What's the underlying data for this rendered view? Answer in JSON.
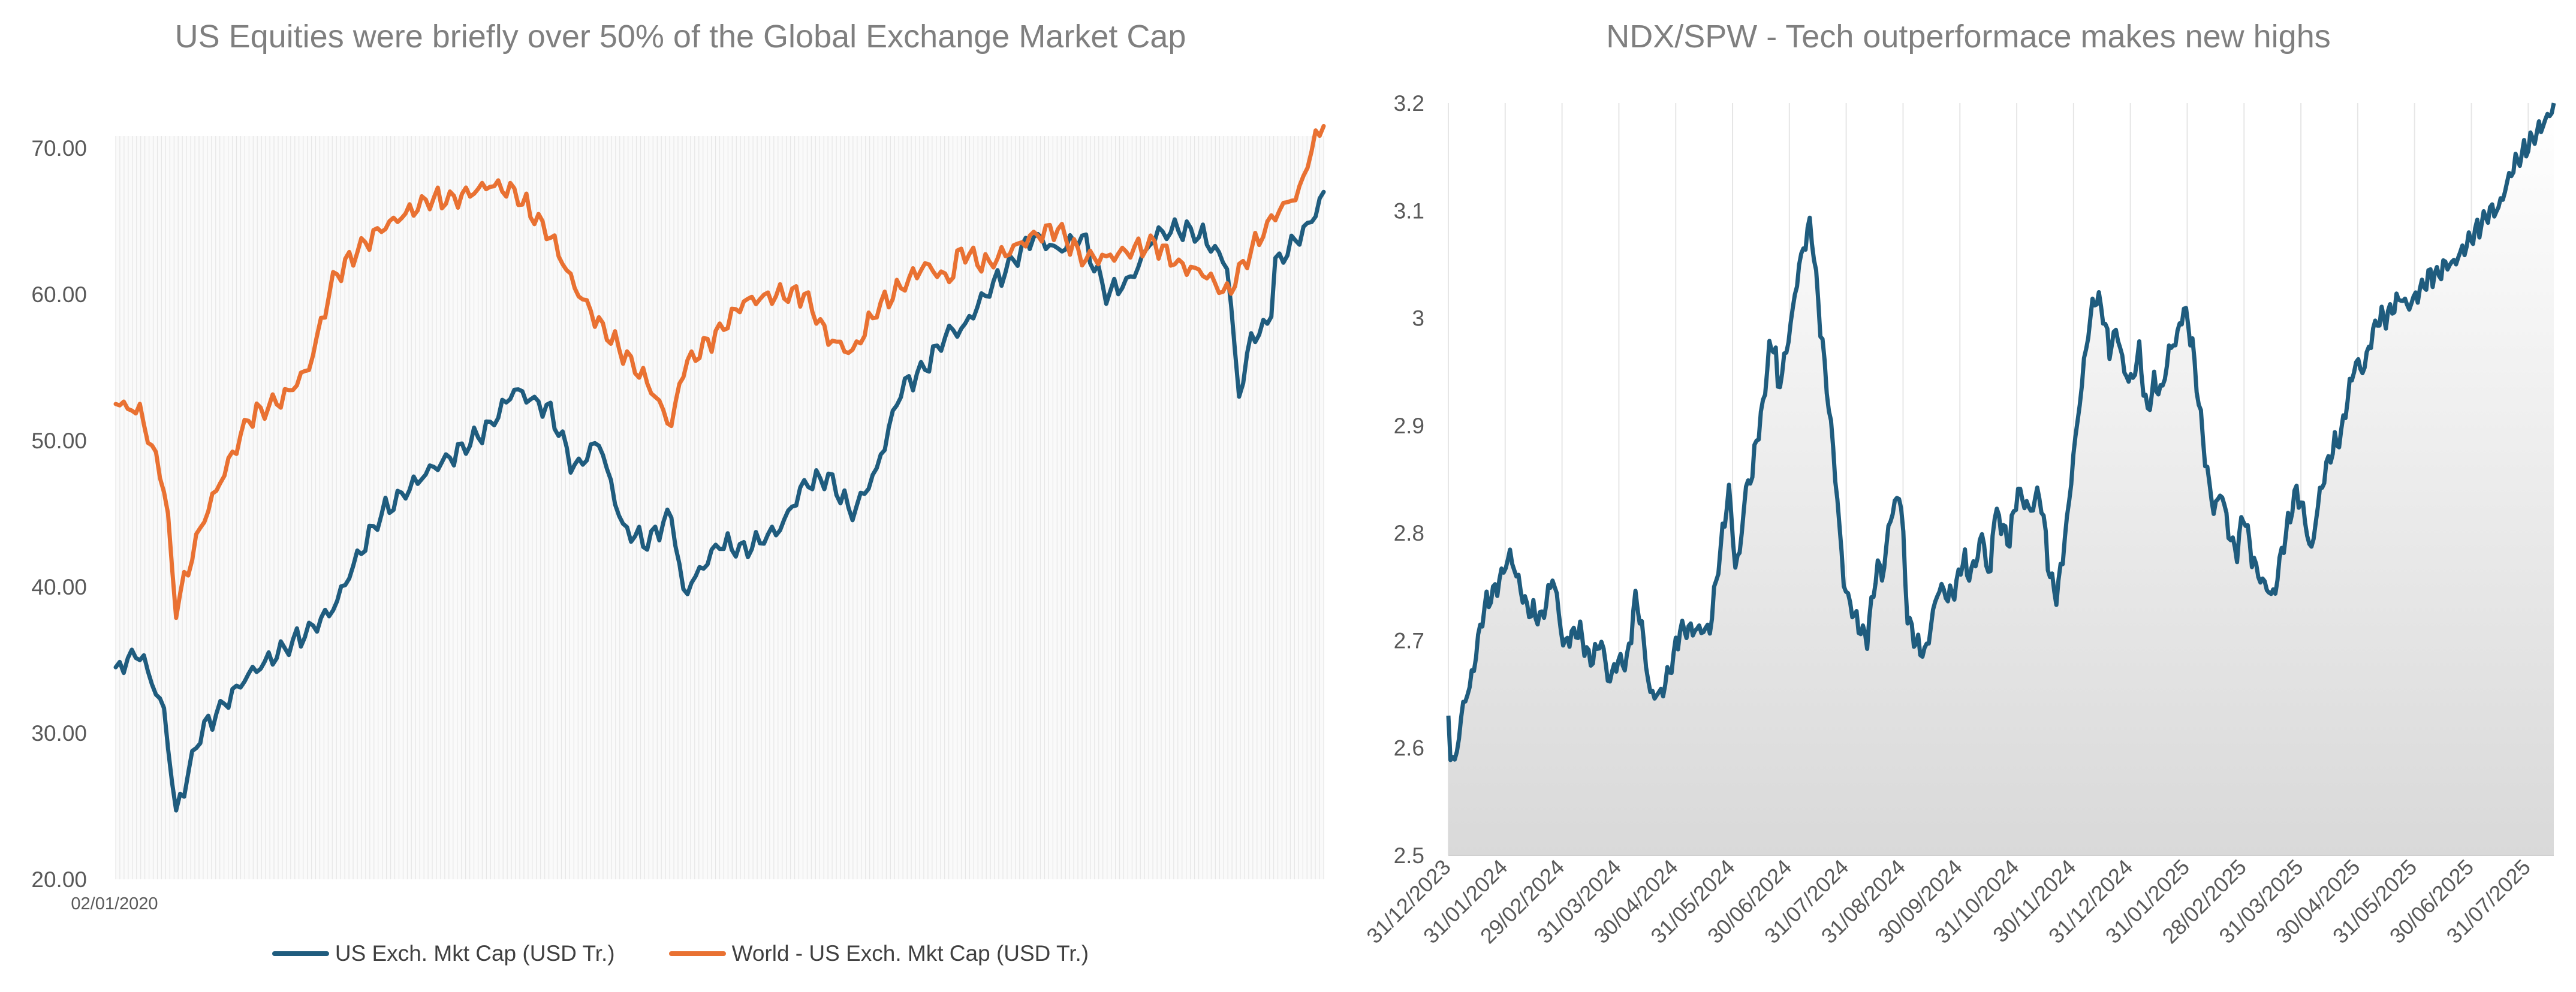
{
  "colors": {
    "us_series": "#1F5C7E",
    "world_series": "#E97132",
    "right_series": "#1F5C7E",
    "area_fill": "#d9d9d9",
    "grid": "#e6e6e6",
    "axis_text": "#595959",
    "title_text": "#7f7f7f"
  },
  "left_chart": {
    "title": "US Equities were briefly over 50% of the Global Exchange Market Cap",
    "legend": {
      "us": "US Exch. Mkt Cap (USD Tr.)",
      "world": "World - US Exch. Mkt Cap (USD Tr.)"
    }
  },
  "right_chart": {
    "title": "NDX/SPW - Tech outperformace makes new highs"
  },
  "chart_data": [
    {
      "type": "line",
      "title": "US Equities were briefly over 50% of the Global Exchange Market Cap",
      "x_tick_labels": [
        "02/01/2020"
      ],
      "y_tick_labels": [
        "20.00",
        "30.00",
        "40.00",
        "50.00",
        "60.00",
        "70.00"
      ],
      "ylim": [
        20,
        75
      ],
      "x_time_start": "2020-01-02",
      "x_time_end": "2025-08-15",
      "grid": "vertical lines",
      "legend_position": "bottom",
      "series": [
        {
          "name": "US Exch. Mkt Cap (USD Tr.)",
          "x": [
            0,
            0.02,
            0.04,
            0.05,
            0.07,
            0.08,
            0.11,
            0.16,
            0.18,
            0.2,
            0.22,
            0.26,
            0.28,
            0.31,
            0.33,
            0.36,
            0.38,
            0.4,
            0.42,
            0.44,
            0.46,
            0.47,
            0.5,
            0.52,
            0.55,
            0.57,
            0.59,
            0.61,
            0.63,
            0.65,
            0.67,
            0.69,
            0.7,
            0.72,
            0.74,
            0.76,
            0.78,
            0.8,
            0.82,
            0.84,
            0.86,
            0.88,
            0.9,
            0.92,
            0.93,
            0.94,
            0.955,
            0.96,
            0.98,
            0.99,
            1.0
          ],
          "values": [
            34.5,
            35.5,
            31.5,
            24.5,
            30,
            31,
            34,
            37,
            38.5,
            42,
            45,
            48,
            49,
            51,
            53.5,
            52,
            48,
            50,
            44,
            43,
            45,
            39.5,
            43,
            42.5,
            44,
            47,
            47.5,
            45,
            48,
            53.5,
            55,
            57.5,
            57.5,
            60,
            62,
            64,
            63,
            64,
            60,
            61,
            64,
            64.5,
            64,
            62,
            53,
            57,
            58,
            62,
            64,
            65,
            67
          ]
        },
        {
          "name": "World - US Exch. Mkt Cap (USD Tr.)",
          "x": [
            0,
            0.02,
            0.04,
            0.05,
            0.07,
            0.08,
            0.11,
            0.14,
            0.16,
            0.18,
            0.2,
            0.22,
            0.26,
            0.28,
            0.31,
            0.33,
            0.36,
            0.38,
            0.4,
            0.42,
            0.44,
            0.46,
            0.47,
            0.5,
            0.52,
            0.55,
            0.57,
            0.59,
            0.61,
            0.63,
            0.65,
            0.67,
            0.69,
            0.7,
            0.72,
            0.74,
            0.76,
            0.78,
            0.8,
            0.82,
            0.84,
            0.86,
            0.88,
            0.9,
            0.92,
            0.94,
            0.96,
            0.98,
            0.99,
            1.0
          ],
          "values": [
            52.5,
            52,
            47,
            38.5,
            44,
            46,
            51.5,
            53,
            55,
            61,
            63,
            64.5,
            66.5,
            66.5,
            67.5,
            67,
            64,
            60.5,
            58,
            56,
            54,
            51,
            55,
            57.5,
            59.5,
            60,
            60,
            57,
            56,
            59,
            60.5,
            62,
            61,
            63,
            62,
            63,
            64,
            64.5,
            62.5,
            62.5,
            63,
            63.5,
            62,
            61.5,
            60,
            63,
            65.5,
            67,
            70,
            71.5
          ]
        }
      ]
    },
    {
      "type": "area",
      "title": "NDX/SPW - Tech outperformace makes new highs",
      "x_tick_labels": [
        "31/12/2023",
        "31/01/2024",
        "29/02/2024",
        "31/03/2024",
        "30/04/2024",
        "31/05/2024",
        "30/06/2024",
        "31/07/2024",
        "31/08/2024",
        "30/09/2024",
        "31/10/2024",
        "30/11/2024",
        "31/12/2024",
        "31/01/2025",
        "28/02/2025",
        "31/03/2025",
        "30/04/2025",
        "31/05/2025",
        "30/06/2025",
        "31/07/2025"
      ],
      "y_tick_labels": [
        "2.5",
        "2.6",
        "2.7",
        "2.8",
        "2.9",
        "3",
        "3.1",
        "3.2"
      ],
      "ylim": [
        2.5,
        3.2
      ],
      "x_time_start": "2023-12-31",
      "x_time_end": "2025-08-15",
      "grid": "vertical lines",
      "series": [
        {
          "name": "",
          "x": [
            0,
            1,
            3,
            8,
            12,
            19,
            26,
            33,
            42,
            50,
            56,
            58,
            62,
            63,
            70,
            76,
            82,
            86,
            90,
            96,
            100,
            103,
            108,
            114,
            120,
            124,
            128,
            134,
            140,
            143,
            147,
            150,
            152,
            154,
            157,
            160,
            163,
            164,
            167,
            172,
            175,
            176,
            180,
            183,
            188,
            194,
            200,
            206,
            212,
            218,
            224,
            228,
            230,
            233,
            236,
            242,
            246,
            250,
            253,
            256,
            260,
            263,
            268,
            272,
            276,
            278,
            282,
            286,
            290,
            292,
            296,
            300,
            305,
            308,
            312,
            316,
            319,
            322,
            326,
            329,
            332,
            334,
            338,
            342,
            346,
            350,
            354,
            358,
            362,
            366,
            370,
            374,
            378,
            382,
            386,
            390,
            394,
            398,
            402,
            406,
            410,
            414,
            418,
            422,
            426,
            430,
            434,
            438,
            442,
            446,
            450,
            454,
            458,
            462,
            466,
            470,
            474,
            478,
            482,
            486,
            490,
            494,
            498,
            502,
            506,
            510,
            514,
            518,
            522,
            526,
            530,
            534,
            538,
            542,
            546,
            550,
            554,
            558,
            562,
            566,
            570,
            574,
            578,
            582,
            586,
            590,
            592
          ],
          "values": [
            2.63,
            2.6,
            2.58,
            2.64,
            2.66,
            2.73,
            2.75,
            2.78,
            2.73,
            2.72,
            2.76,
            2.74,
            2.69,
            2.7,
            2.71,
            2.68,
            2.7,
            2.66,
            2.68,
            2.68,
            2.74,
            2.72,
            2.65,
            2.65,
            2.68,
            2.71,
            2.71,
            2.71,
            2.71,
            2.75,
            2.8,
            2.84,
            2.81,
            2.76,
            2.8,
            2.85,
            2.85,
            2.88,
            2.9,
            2.97,
            2.98,
            2.93,
            2.96,
            2.99,
            3.05,
            3.09,
            2.98,
            2.88,
            2.75,
            2.72,
            2.7,
            2.75,
            2.77,
            2.76,
            2.81,
            2.84,
            2.72,
            2.7,
            2.69,
            2.69,
            2.73,
            2.75,
            2.74,
            2.75,
            2.78,
            2.76,
            2.77,
            2.8,
            2.75,
            2.82,
            2.81,
            2.79,
            2.84,
            2.83,
            2.82,
            2.84,
            2.81,
            2.76,
            2.74,
            2.78,
            2.82,
            2.86,
            2.92,
            2.98,
            3.02,
            3.01,
            2.97,
            2.99,
            2.95,
            2.94,
            2.97,
            2.91,
            2.94,
            2.93,
            2.97,
            2.98,
            3.01,
            2.98,
            2.92,
            2.86,
            2.82,
            2.84,
            2.8,
            2.78,
            2.82,
            2.78,
            2.76,
            2.75,
            2.74,
            2.78,
            2.81,
            2.84,
            2.82,
            2.78,
            2.83,
            2.86,
            2.88,
            2.89,
            2.93,
            2.96,
            2.95,
            2.98,
            3.0,
            3.0,
            3.01,
            3.02,
            3.01,
            3.02,
            3.03,
            3.04,
            3.04,
            3.05,
            3.05,
            3.06,
            3.07,
            3.08,
            3.09,
            3.1,
            3.1,
            3.12,
            3.14,
            3.15,
            3.16,
            3.17,
            3.18,
            3.19,
            3.2
          ]
        }
      ]
    }
  ]
}
